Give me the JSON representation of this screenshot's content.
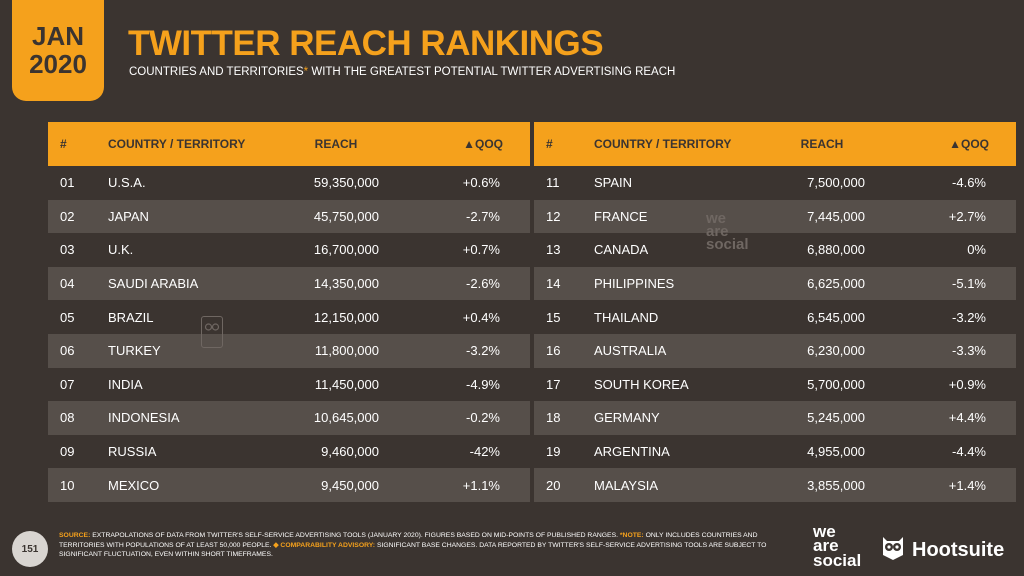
{
  "date": {
    "month": "JAN",
    "year": "2020"
  },
  "header": {
    "title": "TWITTER REACH RANKINGS",
    "subtitle_part1": "COUNTRIES AND TERRITORIES",
    "subtitle_star": "*",
    "subtitle_part2": " WITH THE GREATEST POTENTIAL TWITTER ADVERTISING REACH"
  },
  "columns": {
    "num": "#",
    "country": "COUNTRY / TERRITORY",
    "reach": "REACH",
    "qoq": "▲QOQ"
  },
  "left_rows": [
    {
      "num": "01",
      "country": "U.S.A.",
      "reach": "59,350,000",
      "qoq": "+0.6%"
    },
    {
      "num": "02",
      "country": "JAPAN",
      "reach": "45,750,000",
      "qoq": "-2.7%"
    },
    {
      "num": "03",
      "country": "U.K.",
      "reach": "16,700,000",
      "qoq": "+0.7%"
    },
    {
      "num": "04",
      "country": "SAUDI ARABIA",
      "reach": "14,350,000",
      "qoq": "-2.6%"
    },
    {
      "num": "05",
      "country": "BRAZIL",
      "reach": "12,150,000",
      "qoq": "+0.4%"
    },
    {
      "num": "06",
      "country": "TURKEY",
      "reach": "11,800,000",
      "qoq": "-3.2%"
    },
    {
      "num": "07",
      "country": "INDIA",
      "reach": "11,450,000",
      "qoq": "-4.9%"
    },
    {
      "num": "08",
      "country": "INDONESIA",
      "reach": "10,645,000",
      "qoq": "-0.2%"
    },
    {
      "num": "09",
      "country": "RUSSIA",
      "reach": "9,460,000",
      "qoq": "-42%"
    },
    {
      "num": "10",
      "country": "MEXICO",
      "reach": "9,450,000",
      "qoq": "+1.1%"
    }
  ],
  "right_rows": [
    {
      "num": "11",
      "country": "SPAIN",
      "reach": "7,500,000",
      "qoq": "-4.6%"
    },
    {
      "num": "12",
      "country": "FRANCE",
      "reach": "7,445,000",
      "qoq": "+2.7%"
    },
    {
      "num": "13",
      "country": "CANADA",
      "reach": "6,880,000",
      "qoq": "0%"
    },
    {
      "num": "14",
      "country": "PHILIPPINES",
      "reach": "6,625,000",
      "qoq": "-5.1%"
    },
    {
      "num": "15",
      "country": "THAILAND",
      "reach": "6,545,000",
      "qoq": "-3.2%"
    },
    {
      "num": "16",
      "country": "AUSTRALIA",
      "reach": "6,230,000",
      "qoq": "-3.3%"
    },
    {
      "num": "17",
      "country": "SOUTH KOREA",
      "reach": "5,700,000",
      "qoq": "+0.9%"
    },
    {
      "num": "18",
      "country": "GERMANY",
      "reach": "5,245,000",
      "qoq": "+4.4%"
    },
    {
      "num": "19",
      "country": "ARGENTINA",
      "reach": "4,955,000",
      "qoq": "-4.4%"
    },
    {
      "num": "20",
      "country": "MALAYSIA",
      "reach": "3,855,000",
      "qoq": "+1.4%"
    }
  ],
  "footer": {
    "page": "151",
    "source_label": "SOURCE:",
    "source_text": " EXTRAPOLATIONS OF DATA FROM TWITTER'S SELF-SERVICE ADVERTISING TOOLS (JANUARY 2020). FIGURES BASED ON MID-POINTS OF PUBLISHED RANGES. ",
    "note_label": "*NOTE:",
    "note_text": " ONLY INCLUDES COUNTRIES AND TERRITORIES WITH POPULATIONS OF AT LEAST 50,000 PEOPLE. ",
    "advisory_label": "◆ COMPARABILITY ADVISORY:",
    "advisory_text": " SIGNIFICANT BASE CHANGES. DATA REPORTED BY TWITTER'S SELF-SERVICE ADVERTISING TOOLS ARE SUBJECT TO SIGNIFICANT FLUCTUATION, EVEN WITHIN SHORT TIMEFRAMES."
  },
  "brands": {
    "wearesocial": [
      "we",
      "are",
      "social"
    ],
    "hootsuite": "Hootsuite",
    "hootsuite_icon": "owl-icon"
  },
  "colors": {
    "accent": "#f5a11c",
    "background": "#3b3430",
    "stripe": "#564f4a"
  }
}
